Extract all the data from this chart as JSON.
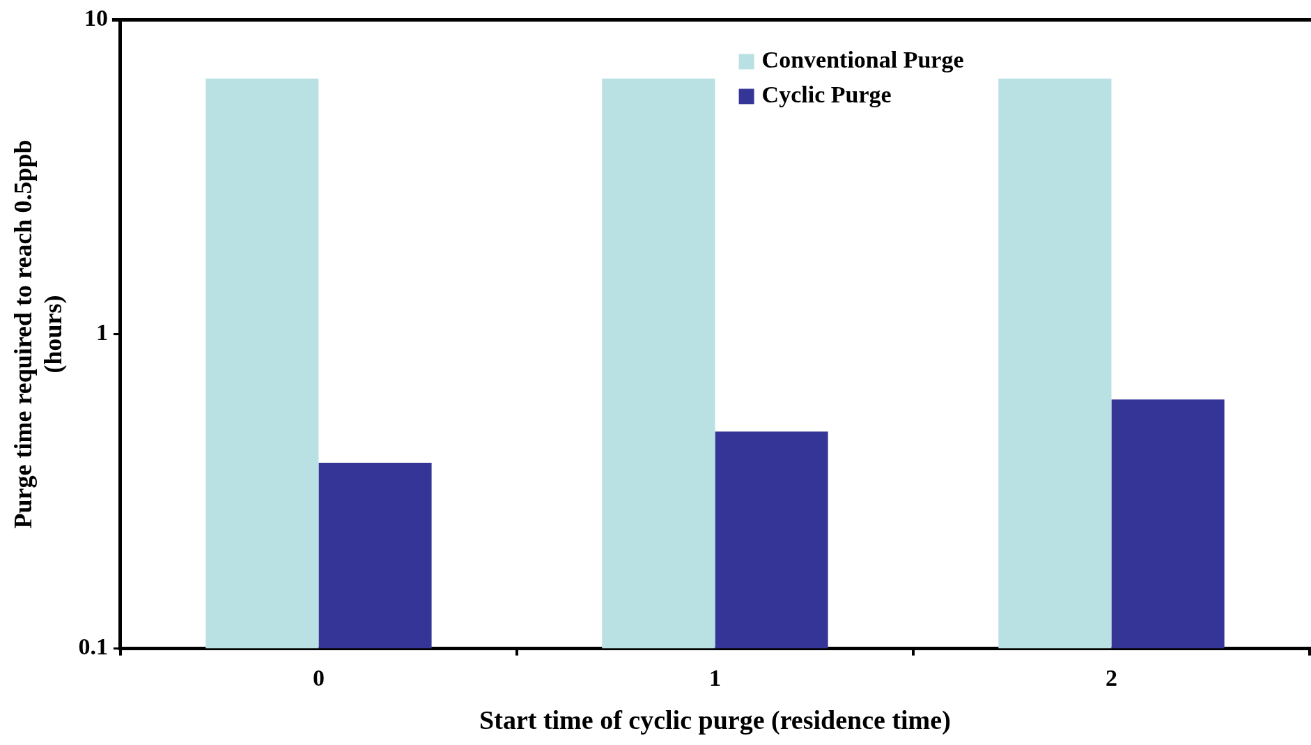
{
  "chart_data": {
    "type": "bar",
    "xlabel": "Start time of cyclic purge (residence time)",
    "ylabel": "Purge time required to reach 0.5ppb\n(hours)",
    "categories": [
      "0",
      "1",
      "2"
    ],
    "series": [
      {
        "name": "Conventional Purge",
        "color": "#b9e0e2",
        "values": [
          6.5,
          6.5,
          6.5
        ]
      },
      {
        "name": "Cyclic Purge",
        "color": "#353598",
        "values": [
          0.39,
          0.49,
          0.62
        ]
      }
    ],
    "log": "y",
    "ylim": [
      0.1,
      10
    ],
    "yticks": [
      0.1,
      1,
      10
    ],
    "grid": false,
    "legend": "top right"
  }
}
